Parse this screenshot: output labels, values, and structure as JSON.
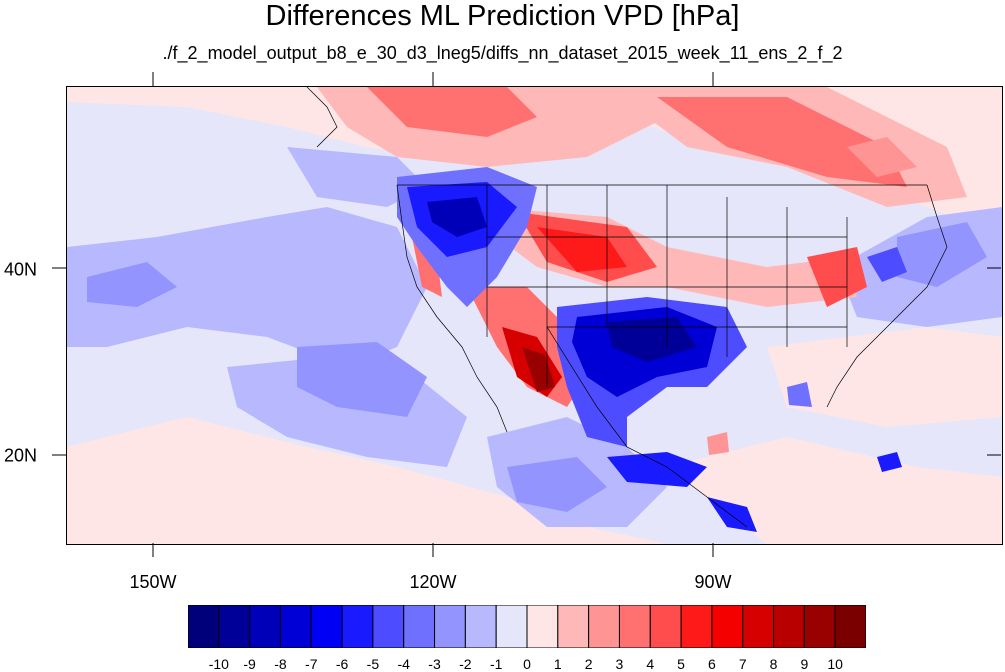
{
  "title": "Differences ML Prediction VPD [hPa]",
  "subtitle": "./f_2_model_output_b8_e_30_d3_lneg5/diffs_nn_dataset_2015_week_11_ens_2_f_2",
  "axes": {
    "x_ticks": [
      {
        "label": "150W",
        "lon": -150
      },
      {
        "label": "120W",
        "lon": -120
      },
      {
        "label": "90W",
        "lon": -90
      }
    ],
    "y_ticks": [
      {
        "label": "40N",
        "lat": 40
      },
      {
        "label": "20N",
        "lat": 20
      }
    ],
    "lon_range": [
      -159,
      -60.5
    ],
    "lat_range": [
      11,
      59.5
    ]
  },
  "colorbar": {
    "labels": [
      "-10",
      "-9",
      "-8",
      "-7",
      "-6",
      "-5",
      "-4",
      "-3",
      "-2",
      "-1",
      "0",
      "1",
      "2",
      "3",
      "4",
      "5",
      "6",
      "7",
      "8",
      "9",
      "10"
    ],
    "colors": [
      "#00007a",
      "#000099",
      "#0000b8",
      "#0000d6",
      "#0000f5",
      "#1a1aff",
      "#4d4dff",
      "#7070ff",
      "#9494ff",
      "#b8b8ff",
      "#e6e6fa",
      "#ffe6e6",
      "#ffb8b8",
      "#ff9494",
      "#ff7070",
      "#ff4d4d",
      "#ff1a1a",
      "#f50000",
      "#d60000",
      "#b80000",
      "#990000",
      "#7a0000"
    ]
  }
}
